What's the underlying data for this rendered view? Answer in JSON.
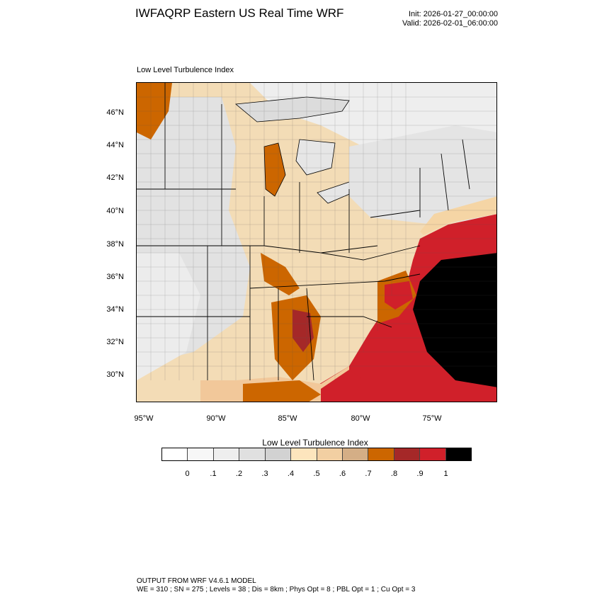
{
  "header": {
    "title": "IWFAQRP Eastern US Real Time WRF",
    "init": "Init: 2026-01-27_00:00:00",
    "valid": "Valid: 2026-02-01_06:00:00"
  },
  "map": {
    "subtitle": "Low Level Turbulence Index",
    "lat_ticks": [
      "46°N",
      "44°N",
      "42°N",
      "40°N",
      "38°N",
      "36°N",
      "34°N",
      "32°N",
      "30°N"
    ],
    "lon_ticks": [
      "95°W",
      "90°W",
      "85°W",
      "80°W",
      "75°W"
    ],
    "colors": {
      "water": "#e8e8e8",
      "ocean_high": "#d0202a",
      "ocean_max": "#000000",
      "land_mid": "#f5d5a5",
      "land_orange": "#cc6600",
      "borders": "#000000"
    }
  },
  "colorbar": {
    "title": "Low Level Turbulence Index",
    "colors": [
      "#ffffff",
      "#f7f7f7",
      "#eeeeee",
      "#e0e0e0",
      "#d2d2d2",
      "#fde5bd",
      "#f2cfa2",
      "#d4ae86",
      "#cc6600",
      "#a52828",
      "#d0202a",
      "#000000"
    ],
    "labels": [
      "0",
      ".1",
      ".2",
      ".3",
      ".4",
      ".5",
      ".6",
      ".7",
      ".8",
      ".9",
      "1"
    ]
  },
  "footer": {
    "line1": "OUTPUT FROM WRF V4.6.1 MODEL",
    "line2": "WE = 310 ; SN = 275 ; Levels = 38 ; Dis = 8km ; Phys Opt = 8 ; PBL Opt = 1 ; Cu Opt = 3"
  }
}
